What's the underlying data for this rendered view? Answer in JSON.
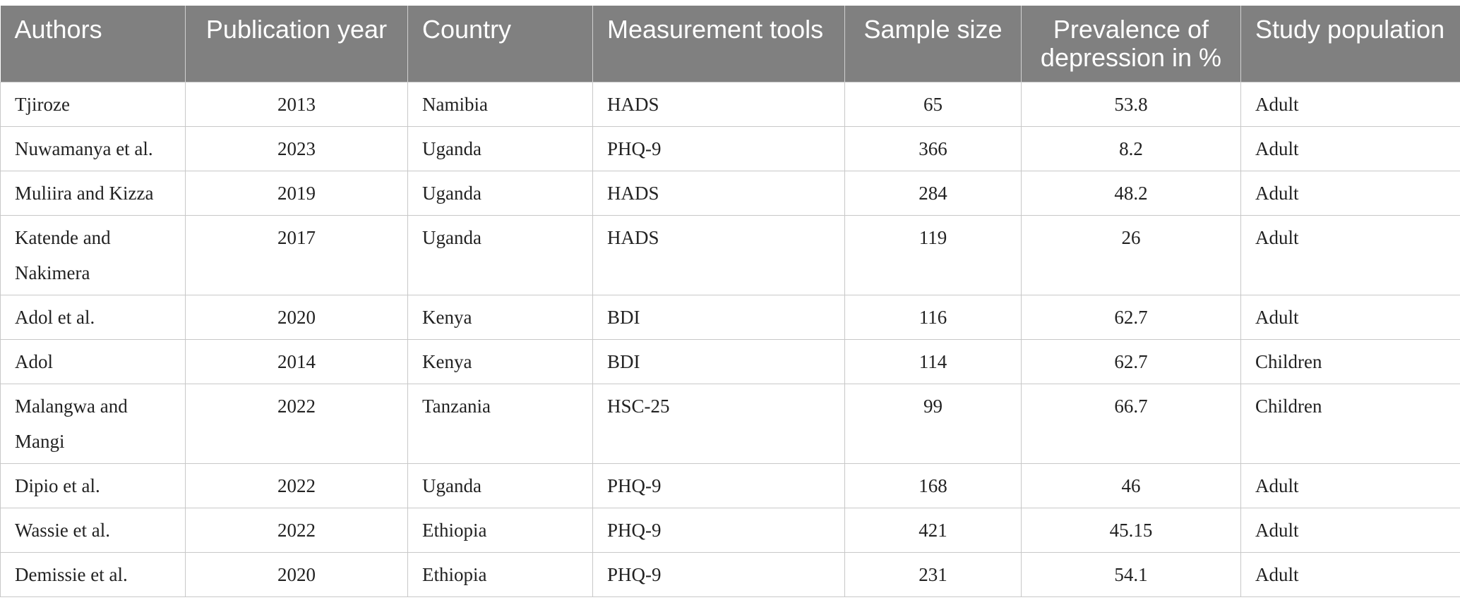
{
  "table": {
    "columns": [
      {
        "label": "Authors",
        "align": "left"
      },
      {
        "label": "Publication year",
        "align": "center"
      },
      {
        "label": "Country",
        "align": "left"
      },
      {
        "label": "Measurement tools",
        "align": "left"
      },
      {
        "label": "Sample size",
        "align": "center"
      },
      {
        "label": "Prevalence of depression in %",
        "align": "center"
      },
      {
        "label": "Study population",
        "align": "left"
      }
    ],
    "rows": [
      [
        "Tjiroze",
        "2013",
        "Namibia",
        "HADS",
        "65",
        "53.8",
        "Adult"
      ],
      [
        "Nuwamanya et al.",
        "2023",
        "Uganda",
        "PHQ-9",
        "366",
        "8.2",
        "Adult"
      ],
      [
        "Muliira and Kizza",
        "2019",
        "Uganda",
        "HADS",
        "284",
        "48.2",
        "Adult"
      ],
      [
        "Katende and Nakimera",
        "2017",
        "Uganda",
        "HADS",
        "119",
        "26",
        "Adult"
      ],
      [
        "Adol et al.",
        "2020",
        "Kenya",
        "BDI",
        "116",
        "62.7",
        "Adult"
      ],
      [
        "Adol",
        "2014",
        "Kenya",
        "BDI",
        "114",
        "62.7",
        "Children"
      ],
      [
        "Malangwa and Mangi",
        "2022",
        "Tanzania",
        "HSC-25",
        "99",
        "66.7",
        "Children"
      ],
      [
        "Dipio et al.",
        "2022",
        "Uganda",
        "PHQ-9",
        "168",
        "46",
        "Adult"
      ],
      [
        "Wassie et al.",
        "2022",
        "Ethiopia",
        "PHQ-9",
        "421",
        "45.15",
        "Adult"
      ],
      [
        "Demissie et al.",
        "2020",
        "Ethiopia",
        "PHQ-9",
        "231",
        "54.1",
        "Adult"
      ]
    ]
  }
}
